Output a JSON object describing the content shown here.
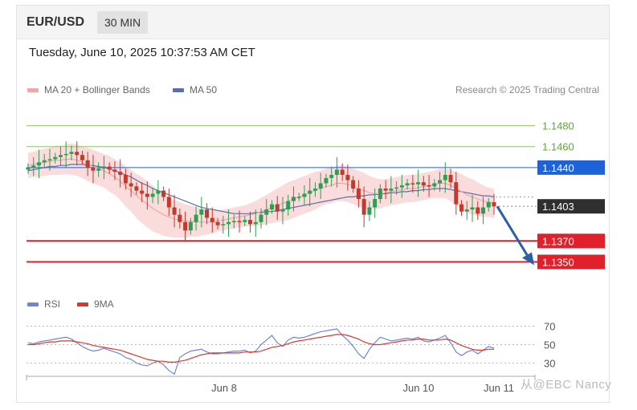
{
  "header": {
    "symbol": "EUR/USD",
    "timeframe": "30 MIN",
    "timestamp": "Tuesday, June 10, 2025 10:37:53 AM CET"
  },
  "legend": {
    "ma20_label": "MA 20 + Bollinger Bands",
    "ma50_label": "MA 50",
    "copyright": "Research © 2025 Trading Central"
  },
  "rsi_legend": {
    "rsi_label": "RSI",
    "ma9_label": "9MA"
  },
  "watermark": "从@EBC Nancy",
  "colors": {
    "up": "#2e9e52",
    "down": "#c23a2b",
    "ma20": "#f1a7a7",
    "band": "#fbdcdc",
    "ma50": "#5b6fa8",
    "rsi": "#6f86d6",
    "ma9": "#d63a2f",
    "support": "#e0202a",
    "resistance": "#8cc66a",
    "pivot": "#1e62d8",
    "last": "#2f2f2f",
    "arrow": "#2d5fa4"
  },
  "chart_data": {
    "type": "candlestick",
    "symbol": "EUR/USD",
    "interval": "30 MIN",
    "x_labels": [
      "Jun 8",
      "Jun 10",
      "Jun 11"
    ],
    "ylim": [
      1.1335,
      1.1495
    ],
    "levels": [
      {
        "label": "1.1480",
        "value": 1.148,
        "kind": "resistance"
      },
      {
        "label": "1.1460",
        "value": 1.146,
        "kind": "resistance"
      },
      {
        "label": "1.1440",
        "value": 1.144,
        "kind": "pivot"
      },
      {
        "label": "1.1403",
        "value": 1.1403,
        "kind": "last"
      },
      {
        "label": "1.1370",
        "value": 1.137,
        "kind": "support"
      },
      {
        "label": "1.1350",
        "value": 1.135,
        "kind": "support"
      }
    ],
    "closes": [
      1.144,
      1.1442,
      1.1445,
      1.1447,
      1.1448,
      1.145,
      1.1452,
      1.1453,
      1.1455,
      1.1452,
      1.1447,
      1.144,
      1.1437,
      1.1439,
      1.1441,
      1.1438,
      1.1436,
      1.1433,
      1.1425,
      1.1422,
      1.1418,
      1.1415,
      1.1412,
      1.1415,
      1.1418,
      1.1412,
      1.1402,
      1.1395,
      1.1388,
      1.138,
      1.1388,
      1.1395,
      1.14,
      1.1392,
      1.1388,
      1.1385,
      1.1386,
      1.1388,
      1.1389,
      1.1388,
      1.139,
      1.1386,
      1.1388,
      1.1395,
      1.14,
      1.1405,
      1.1398,
      1.14,
      1.1408,
      1.1412,
      1.1412,
      1.1415,
      1.1418,
      1.142,
      1.1425,
      1.143,
      1.1433,
      1.1438,
      1.1433,
      1.1428,
      1.142,
      1.141,
      1.1395,
      1.1402,
      1.141,
      1.142,
      1.1418,
      1.142,
      1.1421,
      1.1423,
      1.1425,
      1.1424,
      1.1426,
      1.1423,
      1.1422,
      1.1425,
      1.1428,
      1.1433,
      1.1426,
      1.1405,
      1.1398,
      1.14,
      1.1402,
      1.1396,
      1.1402,
      1.1407,
      1.1403
    ],
    "ma20": [
      1.1442,
      1.1443,
      1.1444,
      1.1445,
      1.1446,
      1.1447,
      1.1447,
      1.1448,
      1.1448,
      1.1447,
      1.1445,
      1.1443,
      1.1441,
      1.1439,
      1.1437,
      1.1434,
      1.1431,
      1.1427,
      1.1422,
      1.1418,
      1.1413,
      1.1409,
      1.1405,
      1.1401,
      1.1398,
      1.1395,
      1.1393,
      1.1391,
      1.139,
      1.1389,
      1.1389,
      1.1388,
      1.1388,
      1.1388,
      1.1388,
      1.1389,
      1.139,
      1.1391,
      1.1392,
      1.1393,
      1.1394,
      1.1395,
      1.1396,
      1.1398,
      1.14,
      1.1402,
      1.1404,
      1.1406,
      1.1408,
      1.141,
      1.1412,
      1.1414,
      1.1416,
      1.1418,
      1.142,
      1.1422,
      1.1423,
      1.1425,
      1.1425,
      1.1424,
      1.1422,
      1.142,
      1.1418,
      1.1416,
      1.1415,
      1.1415,
      1.1416,
      1.1417,
      1.1418,
      1.1419,
      1.142,
      1.142,
      1.1421,
      1.1422,
      1.1423,
      1.1424,
      1.1425,
      1.1425,
      1.1423,
      1.142,
      1.1417,
      1.1414,
      1.1412,
      1.141,
      1.1408,
      1.1407,
      1.1406
    ],
    "ma50": [
      1.1437,
      1.1438,
      1.1439,
      1.144,
      1.1441,
      1.1441,
      1.1442,
      1.1442,
      1.1443,
      1.1443,
      1.1443,
      1.1442,
      1.1442,
      1.1441,
      1.144,
      1.1439,
      1.1437,
      1.1435,
      1.1433,
      1.1431,
      1.1428,
      1.1425,
      1.1423,
      1.142,
      1.1418,
      1.1416,
      1.1414,
      1.1412,
      1.141,
      1.1408,
      1.1406,
      1.1404,
      1.1402,
      1.1401,
      1.14,
      1.1399,
      1.1398,
      1.1397,
      1.1396,
      1.1396,
      1.1396,
      1.1396,
      1.1397,
      1.1397,
      1.1398,
      1.1398,
      1.1399,
      1.14,
      1.1401,
      1.1402,
      1.1403,
      1.1404,
      1.1405,
      1.1406,
      1.1407,
      1.1408,
      1.1409,
      1.141,
      1.1411,
      1.1412,
      1.1412,
      1.1413,
      1.1413,
      1.1414,
      1.1414,
      1.1415,
      1.1415,
      1.1416,
      1.1416,
      1.1417,
      1.1417,
      1.1418,
      1.1418,
      1.1419,
      1.1419,
      1.142,
      1.142,
      1.142,
      1.1419,
      1.1418,
      1.1417,
      1.1416,
      1.1415,
      1.1414,
      1.1413,
      1.1413,
      1.1412
    ],
    "band_width": [
      0.0012,
      0.0012,
      0.0013,
      0.0013,
      0.0013,
      0.0014,
      0.0014,
      0.0014,
      0.0015,
      0.0015,
      0.0015,
      0.0016,
      0.0016,
      0.0016,
      0.0016,
      0.0017,
      0.0017,
      0.0018,
      0.0019,
      0.002,
      0.0021,
      0.0022,
      0.0022,
      0.0022,
      0.0021,
      0.002,
      0.0019,
      0.0018,
      0.0017,
      0.0016,
      0.0015,
      0.0014,
      0.0013,
      0.0012,
      0.0011,
      0.001,
      0.001,
      0.001,
      0.001,
      0.001,
      0.001,
      0.0011,
      0.0012,
      0.0013,
      0.0014,
      0.0015,
      0.0016,
      0.0017,
      0.0018,
      0.0018,
      0.0018,
      0.0018,
      0.0018,
      0.0018,
      0.0017,
      0.0017,
      0.0017,
      0.0017,
      0.0017,
      0.0017,
      0.0017,
      0.0017,
      0.0017,
      0.0016,
      0.0015,
      0.0014,
      0.0013,
      0.0013,
      0.0013,
      0.0013,
      0.0013,
      0.0013,
      0.0013,
      0.0013,
      0.0013,
      0.0013,
      0.0014,
      0.0014,
      0.0015,
      0.0016,
      0.0017,
      0.0017,
      0.0017,
      0.0016,
      0.0015,
      0.0014,
      0.0014
    ],
    "projection": {
      "from": 1.1403,
      "to": 1.135
    },
    "rsi": {
      "ylim": [
        20,
        80
      ],
      "ticks": [
        70,
        50,
        30
      ],
      "rsi": [
        52,
        51,
        53,
        54,
        55,
        56,
        57,
        58,
        56,
        52,
        48,
        45,
        43,
        44,
        46,
        44,
        42,
        40,
        36,
        34,
        30,
        28,
        27,
        30,
        32,
        28,
        22,
        18,
        36,
        40,
        43,
        44,
        45,
        42,
        40,
        40,
        41,
        42,
        43,
        43,
        44,
        41,
        43,
        50,
        55,
        60,
        52,
        48,
        55,
        58,
        57,
        58,
        60,
        62,
        64,
        65,
        66,
        67,
        60,
        55,
        48,
        40,
        35,
        45,
        52,
        58,
        56,
        54,
        55,
        56,
        57,
        56,
        58,
        54,
        53,
        55,
        57,
        60,
        52,
        42,
        38,
        42,
        44,
        40,
        44,
        48,
        46
      ],
      "ma9": [
        50,
        50,
        51,
        52,
        53,
        53,
        54,
        54,
        54,
        53,
        52,
        51,
        49,
        48,
        47,
        46,
        45,
        44,
        42,
        40,
        38,
        36,
        34,
        33,
        32,
        32,
        31,
        31,
        32,
        33,
        35,
        37,
        39,
        40,
        41,
        41,
        41,
        41,
        41,
        41,
        42,
        42,
        42,
        43,
        45,
        47,
        48,
        49,
        51,
        53,
        54,
        55,
        56,
        57,
        58,
        59,
        60,
        61,
        61,
        60,
        58,
        56,
        53,
        51,
        50,
        50,
        51,
        52,
        53,
        54,
        55,
        55,
        56,
        56,
        55,
        55,
        55,
        56,
        55,
        52,
        49,
        47,
        45,
        44,
        44,
        45,
        45
      ]
    }
  }
}
